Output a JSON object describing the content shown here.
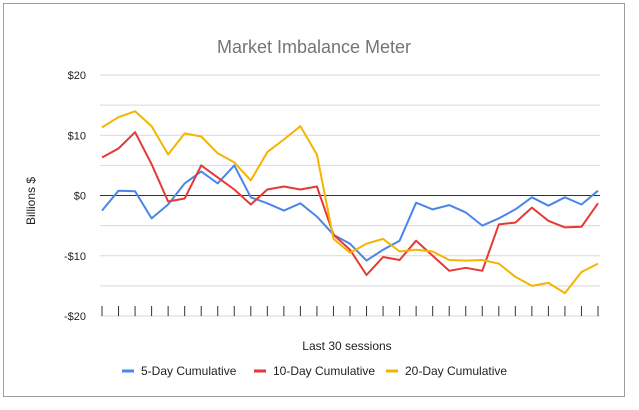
{
  "chart_data": {
    "type": "line",
    "title": "Market Imbalance Meter",
    "xlabel": "Last 30 sessions",
    "ylabel": "Billions $",
    "ylim": [
      -20,
      20
    ],
    "yticks": [
      20,
      10,
      0,
      -10,
      -20
    ],
    "ytick_labels": [
      "$20",
      "$10",
      "$0",
      "-$10",
      "-$20"
    ],
    "x": [
      1,
      2,
      3,
      4,
      5,
      6,
      7,
      8,
      9,
      10,
      11,
      12,
      13,
      14,
      15,
      16,
      17,
      18,
      19,
      20,
      21,
      22,
      23,
      24,
      25,
      26,
      27,
      28,
      29,
      30,
      31
    ],
    "grid": true,
    "legend_position": "bottom",
    "series": [
      {
        "name": "5-Day Cumulative",
        "color": "#4a86e8",
        "values": [
          -2.5,
          0.8,
          0.7,
          -3.8,
          -1.5,
          2.0,
          4.0,
          2.0,
          5.0,
          -0.3,
          -1.3,
          -2.5,
          -1.3,
          -3.5,
          -6.5,
          -8.0,
          -10.8,
          -9.0,
          -7.5,
          -1.2,
          -2.3,
          -1.6,
          -2.8,
          -5.0,
          -3.8,
          -2.3,
          -0.3,
          -1.7,
          -0.3,
          -1.5,
          0.8
        ]
      },
      {
        "name": "10-Day Cumulative",
        "color": "#e53935",
        "values": [
          6.3,
          7.8,
          10.5,
          5.2,
          -1.0,
          -0.5,
          5.0,
          3.0,
          1.0,
          -1.5,
          1.0,
          1.5,
          1.0,
          1.5,
          -6.5,
          -9.0,
          -13.2,
          -10.2,
          -10.7,
          -7.5,
          -10.0,
          -12.5,
          -12.0,
          -12.5,
          -4.8,
          -4.5,
          -2.0,
          -4.2,
          -5.3,
          -5.2,
          -1.3
        ]
      },
      {
        "name": "20-Day Cumulative",
        "color": "#f4b400",
        "values": [
          11.3,
          13.0,
          14.0,
          11.5,
          6.8,
          10.3,
          9.8,
          7.0,
          5.5,
          2.5,
          7.2,
          9.3,
          11.5,
          6.8,
          -7.2,
          -9.5,
          -8.0,
          -7.2,
          -9.3,
          -9.0,
          -9.3,
          -10.7,
          -10.8,
          -10.7,
          -11.3,
          -13.5,
          -15.0,
          -14.5,
          -16.2,
          -12.7,
          -11.3
        ]
      }
    ]
  }
}
